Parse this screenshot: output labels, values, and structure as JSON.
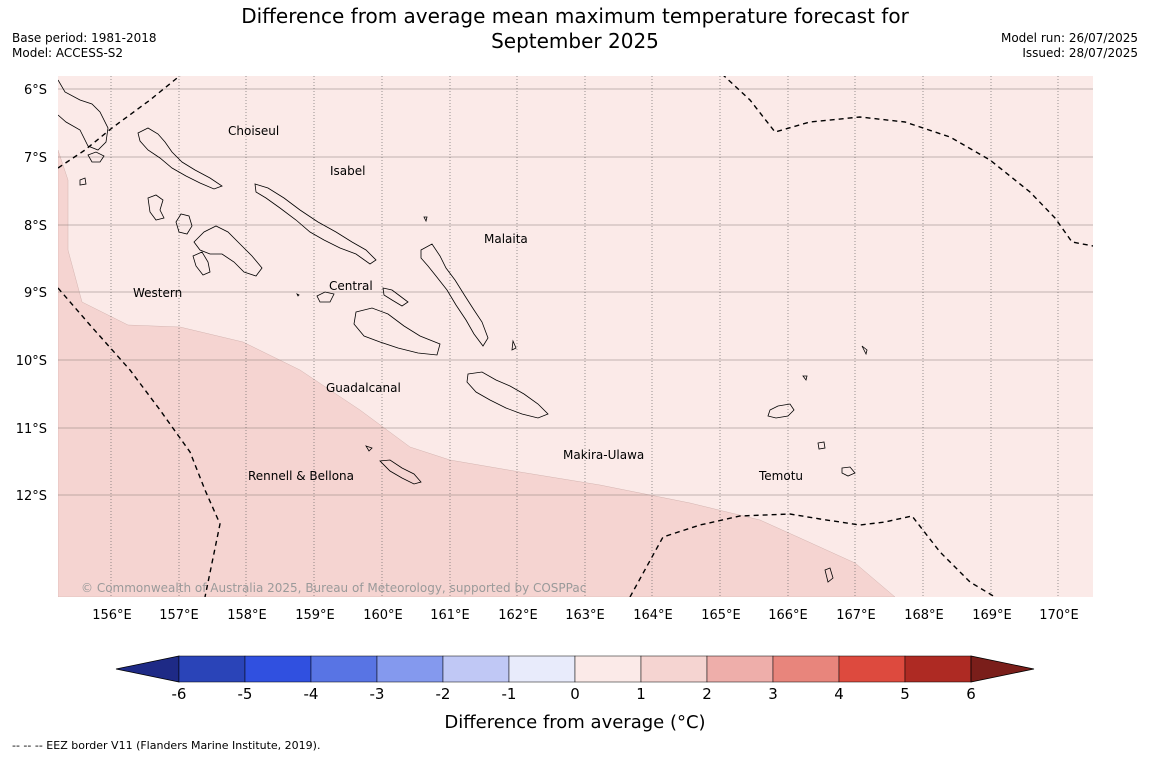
{
  "title": {
    "line1": "Difference from average mean maximum temperature forecast for",
    "line2": "September 2025"
  },
  "meta_left": {
    "base_period": "Base period: 1981-2018",
    "model": "Model: ACCESS-S2"
  },
  "meta_right": {
    "model_run": "Model run: 26/07/2025",
    "issued": "Issued: 28/07/2025"
  },
  "map": {
    "lat_labels": [
      "6°S",
      "7°S",
      "8°S",
      "9°S",
      "10°S",
      "11°S",
      "12°S"
    ],
    "lon_labels": [
      "156°E",
      "157°E",
      "158°E",
      "159°E",
      "160°E",
      "161°E",
      "162°E",
      "163°E",
      "164°E",
      "165°E",
      "166°E",
      "167°E",
      "168°E",
      "169°E",
      "170°E"
    ],
    "regions": [
      "Choiseul",
      "Isabel",
      "Malaita",
      "Western",
      "Central",
      "Guadalcanal",
      "Makira-Ulawa",
      "Rennell & Bellona",
      "Temotu"
    ],
    "copyright": "© Commonwealth of Australia 2025, Bureau of Meteorology, supported by COSPPac",
    "fill_colors": {
      "band_0_1": "#fbeae8",
      "band_1_2": "#f5d4d1"
    }
  },
  "colorbar": {
    "label": "Difference from average (°C)",
    "ticks": [
      "-6",
      "-5",
      "-4",
      "-3",
      "-2",
      "-1",
      "0",
      "1",
      "2",
      "3",
      "4",
      "5",
      "6"
    ],
    "colors": [
      "#1e2a86",
      "#2a44b8",
      "#3050e0",
      "#5874e4",
      "#8499ee",
      "#c0c8f5",
      "#e8ebfb",
      "#fbeae8",
      "#f5d4d1",
      "#eeaeaa",
      "#e8857c",
      "#dd4a3e",
      "#ae2a23",
      "#7a1e1a"
    ]
  },
  "footer": "--  --  -- EEZ border V11 (Flanders Marine Institute, 2019)."
}
